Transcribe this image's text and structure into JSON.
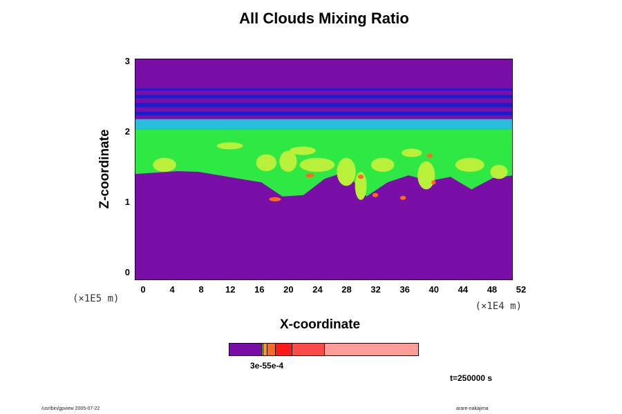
{
  "chart_data": {
    "type": "heatmap",
    "title": "All Clouds Mixing Ratio",
    "xlabel": "X-coordinate",
    "ylabel": "Z-coordinate",
    "x_scale_label": "(×1E4 m)",
    "y_scale_label": "(×1E5 m)",
    "x_ticks": [
      "0",
      "4",
      "8",
      "12",
      "16",
      "20",
      "24",
      "28",
      "32",
      "36",
      "40",
      "44",
      "48",
      "52"
    ],
    "y_ticks": [
      "0",
      "1",
      "2",
      "3"
    ],
    "xlim": [
      0,
      52
    ],
    "ylim": [
      -0.1,
      3.05
    ],
    "time_label": "t=250000 s",
    "colorbar": {
      "label": "3e-55e-4",
      "segments": [
        {
          "color": "#7a0fa8",
          "from": 0.0,
          "to": 0.17
        },
        {
          "color": "#d9c400",
          "from": 0.17,
          "to": 0.178
        },
        {
          "color": "#ff9a00",
          "from": 0.178,
          "to": 0.2
        },
        {
          "color": "#ff6a20",
          "from": 0.2,
          "to": 0.245
        },
        {
          "color": "#ff1a1a",
          "from": 0.245,
          "to": 0.33
        },
        {
          "color": "#ff4a4a",
          "from": 0.33,
          "to": 0.5
        },
        {
          "color": "#ff9e98",
          "from": 0.5,
          "to": 1.0
        }
      ]
    },
    "field_regions": [
      {
        "label": "background",
        "color": "#7a0fa8"
      },
      {
        "label": "upper blue bands",
        "color": "#1c1ccf",
        "z_range": [
          2.15,
          2.65
        ]
      },
      {
        "label": "cyan layer",
        "color": "#1fd0e0",
        "z_range": [
          2.05,
          2.2
        ]
      },
      {
        "label": "green cloud layer",
        "color": "#2ee844",
        "z_range": [
          1.45,
          2.05
        ]
      },
      {
        "label": "yellow-green patches",
        "color": "#b8f03a",
        "z_range": [
          1.0,
          1.9
        ]
      },
      {
        "label": "orange/red cores",
        "color": "#ff6a20",
        "z_range": [
          1.05,
          1.75
        ]
      }
    ]
  },
  "footer": {
    "left": "/usr/bin/gpview 2005-07-22",
    "right": "arare-nakajima"
  }
}
